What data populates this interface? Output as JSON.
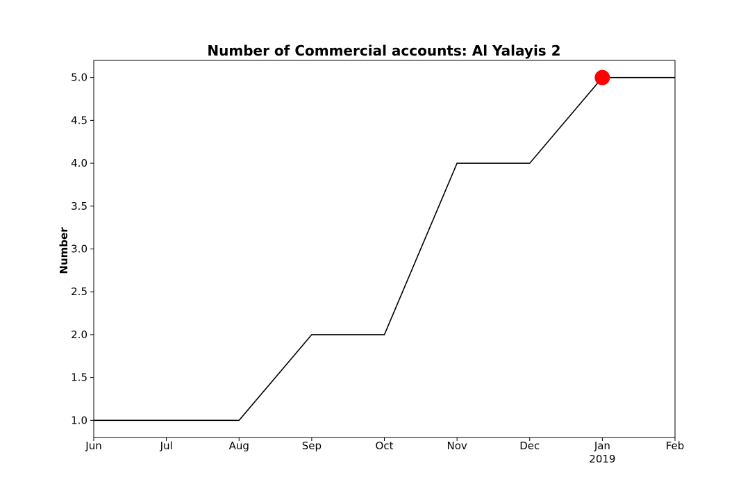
{
  "chart_data": {
    "type": "line",
    "title": "Number of Commercial accounts: Al Yalayis 2",
    "xlabel": "",
    "ylabel": "Number",
    "x": [
      "2018-06",
      "2018-07",
      "2018-08",
      "2018-09",
      "2018-10",
      "2018-11",
      "2018-12",
      "2019-01",
      "2019-02"
    ],
    "series": [
      {
        "values": [
          1.0,
          1.0,
          1.0,
          2.0,
          2.0,
          4.0,
          4.0,
          5.0,
          5.0
        ],
        "color": "#000000"
      }
    ],
    "highlight_point": {
      "x": "2019-01",
      "y": 5.0,
      "color": "#ff0000"
    },
    "xlim": [
      "2018-06",
      "2019-02"
    ],
    "ylim": [
      0.8,
      5.2
    ],
    "x_ticks": [
      {
        "x": "2018-06",
        "label": "Jun"
      },
      {
        "x": "2018-07",
        "label": "Jul"
      },
      {
        "x": "2018-08",
        "label": "Aug"
      },
      {
        "x": "2018-09",
        "label": "Sep"
      },
      {
        "x": "2018-10",
        "label": "Oct"
      },
      {
        "x": "2018-11",
        "label": "Nov"
      },
      {
        "x": "2018-12",
        "label": "Dec"
      },
      {
        "x": "2019-01",
        "label": "Jan",
        "sublabel": "2019"
      },
      {
        "x": "2019-02",
        "label": "Feb"
      }
    ],
    "y_ticks": [
      {
        "y": 1.0,
        "label": "1.0"
      },
      {
        "y": 1.5,
        "label": "1.5"
      },
      {
        "y": 2.0,
        "label": "2.0"
      },
      {
        "y": 2.5,
        "label": "2.5"
      },
      {
        "y": 3.0,
        "label": "3.0"
      },
      {
        "y": 3.5,
        "label": "3.5"
      },
      {
        "y": 4.0,
        "label": "4.0"
      },
      {
        "y": 4.5,
        "label": "4.5"
      },
      {
        "y": 5.0,
        "label": "5.0"
      }
    ],
    "grid": false,
    "legend": "none"
  }
}
